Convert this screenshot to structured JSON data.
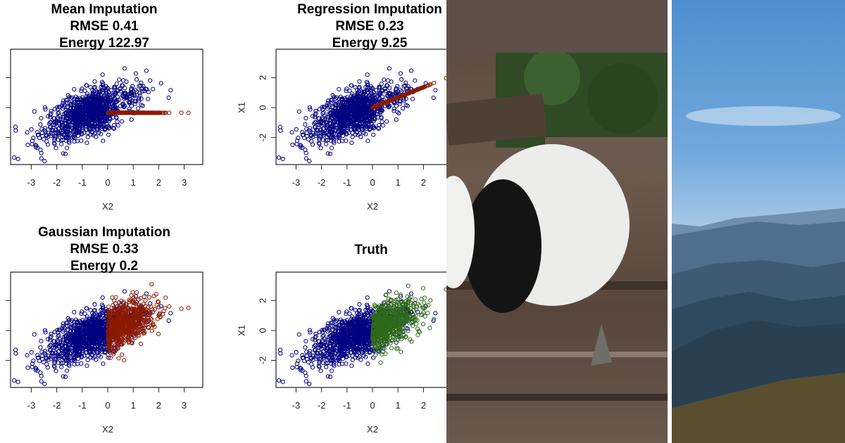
{
  "chart_data": [
    {
      "type": "scatter",
      "title": [
        "Mean Imputation",
        "RMSE 0.41",
        "Energy 122.97"
      ],
      "xlabel": "X2",
      "ylabel": "",
      "xticks": [
        "-3",
        "-2",
        "-1",
        "0",
        "1",
        "2",
        "3"
      ],
      "yticks": [],
      "xlim": [
        -3.8,
        3.7
      ],
      "ylim": [
        -3.8,
        3.6
      ],
      "series": [
        {
          "role": "observed",
          "color": "#000080"
        },
        {
          "role": "imputed",
          "color": "#8b1a00",
          "imputation": "mean",
          "x_range": [
            0,
            3.5
          ],
          "y_value": -0.35
        }
      ]
    },
    {
      "type": "scatter",
      "title": [
        "Regression Imputation",
        "RMSE 0.23",
        "Energy 9.25"
      ],
      "xlabel": "X2",
      "ylabel": "X1",
      "xticks": [
        "-3",
        "-2",
        "-1",
        "0",
        "1",
        "2"
      ],
      "yticks": [
        "-2",
        "0",
        "2"
      ],
      "xlim": [
        -3.8,
        3.7
      ],
      "ylim": [
        -3.8,
        3.6
      ],
      "series": [
        {
          "role": "observed",
          "color": "#000080"
        },
        {
          "role": "imputed",
          "color": "#8b1a00",
          "imputation": "regression",
          "x_range": [
            0,
            2.8
          ],
          "slope": 0.68,
          "intercept": 0
        }
      ]
    },
    {
      "type": "scatter",
      "title": [
        "Gaussian Imputation",
        "RMSE 0.33",
        "Energy 0.2"
      ],
      "xlabel": "X2",
      "ylabel": "",
      "xticks": [
        "-3",
        "-2",
        "-1",
        "0",
        "1",
        "2",
        "3"
      ],
      "yticks": [],
      "xlim": [
        -3.8,
        3.7
      ],
      "ylim": [
        -3.8,
        3.6
      ],
      "series": [
        {
          "role": "observed",
          "color": "#000080"
        },
        {
          "role": "imputed",
          "color": "#8b1a00",
          "imputation": "gaussian"
        }
      ]
    },
    {
      "type": "scatter",
      "title": [
        "Truth"
      ],
      "xlabel": "X2",
      "ylabel": "X1",
      "xticks": [
        "-3",
        "-2",
        "-1",
        "0",
        "1",
        "2"
      ],
      "yticks": [
        "-2",
        "0",
        "2"
      ],
      "xlim": [
        -3.8,
        3.7
      ],
      "ylim": [
        -3.8,
        3.6
      ],
      "series": [
        {
          "role": "observed",
          "color": "#000080"
        },
        {
          "role": "true-missing",
          "color": "#2e6b1a"
        }
      ]
    }
  ],
  "photos": [
    {
      "subject": "panda-cub-on-logs"
    },
    {
      "subject": "mountain-landscape-blue-sky"
    }
  ]
}
